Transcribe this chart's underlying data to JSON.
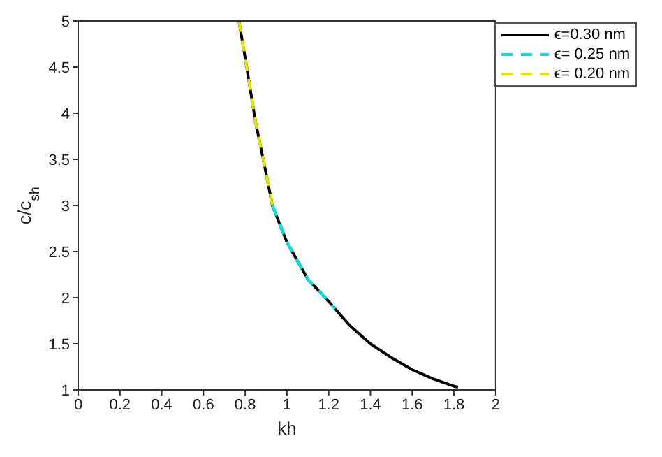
{
  "chart_data": {
    "type": "line",
    "xlabel": "kh",
    "ylabel": "c/c$_{sh}$",
    "xlim": [
      0,
      2
    ],
    "xticks": [
      0,
      0.2,
      0.4,
      0.6,
      0.8,
      1,
      1.2,
      1.4,
      1.6,
      1.8,
      2
    ],
    "ylim": [
      1,
      5
    ],
    "yticks": [
      1,
      1.5,
      2,
      2.5,
      3,
      3.5,
      4,
      4.5,
      5
    ],
    "grid": false,
    "legend": "top right",
    "marker": "none",
    "series": [
      {
        "name": "ϵ=0.30 nm",
        "color": "#000000",
        "line_style": "solid",
        "x": [
          0.77,
          0.8,
          0.85,
          0.9,
          0.93,
          1.0,
          1.1,
          1.2,
          1.3,
          1.4,
          1.5,
          1.6,
          1.7,
          1.8,
          1.82
        ],
        "values": [
          5,
          4.6,
          3.9,
          3.35,
          3.0,
          2.6,
          2.2,
          1.96,
          1.7,
          1.5,
          1.35,
          1.22,
          1.12,
          1.04,
          1.03
        ]
      },
      {
        "name": "ϵ= 0.25 nm",
        "color": "#00e5e5",
        "line_style": "dashed",
        "x": [
          0.93,
          1.0,
          1.1,
          1.2,
          1.23
        ],
        "values": [
          3.0,
          2.6,
          2.2,
          1.96,
          1.88
        ]
      },
      {
        "name": "ϵ= 0.20 nm",
        "color": "#e5e500",
        "line_style": "dashed",
        "x": [
          0.77,
          0.8,
          0.85,
          0.9,
          0.93
        ],
        "values": [
          5,
          4.6,
          3.9,
          3.35,
          3.0
        ]
      }
    ]
  }
}
